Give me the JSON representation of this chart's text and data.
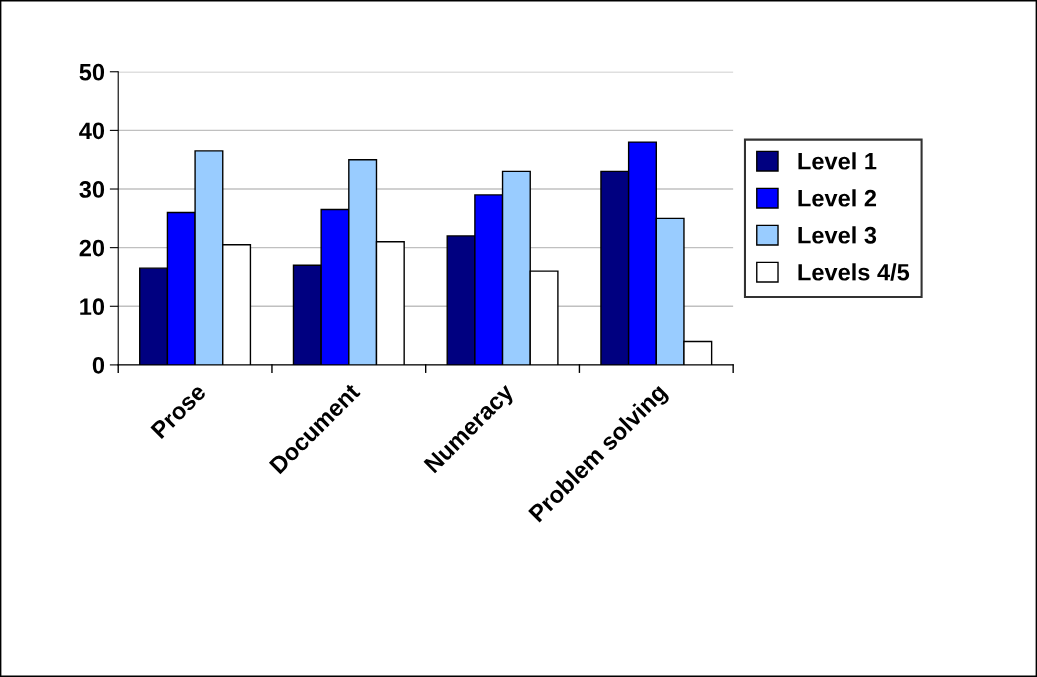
{
  "chart_data": {
    "type": "bar",
    "categories": [
      "Prose",
      "Document",
      "Numeracy",
      "Problem solving"
    ],
    "series": [
      {
        "name": "Level 1",
        "color": "#000080",
        "values": [
          16.5,
          17,
          22,
          33
        ]
      },
      {
        "name": "Level 2",
        "color": "#0000ff",
        "values": [
          26,
          26.5,
          29,
          38
        ]
      },
      {
        "name": "Level 3",
        "color": "#99ccff",
        "values": [
          36.5,
          35,
          33,
          25
        ]
      },
      {
        "name": "Levels 4/5",
        "color": "#ffffff",
        "values": [
          20.5,
          21,
          16,
          4
        ]
      }
    ],
    "ylim": [
      0,
      50
    ],
    "yticks": [
      0,
      10,
      20,
      30,
      40,
      50
    ],
    "grid": "y",
    "legend": "right"
  }
}
